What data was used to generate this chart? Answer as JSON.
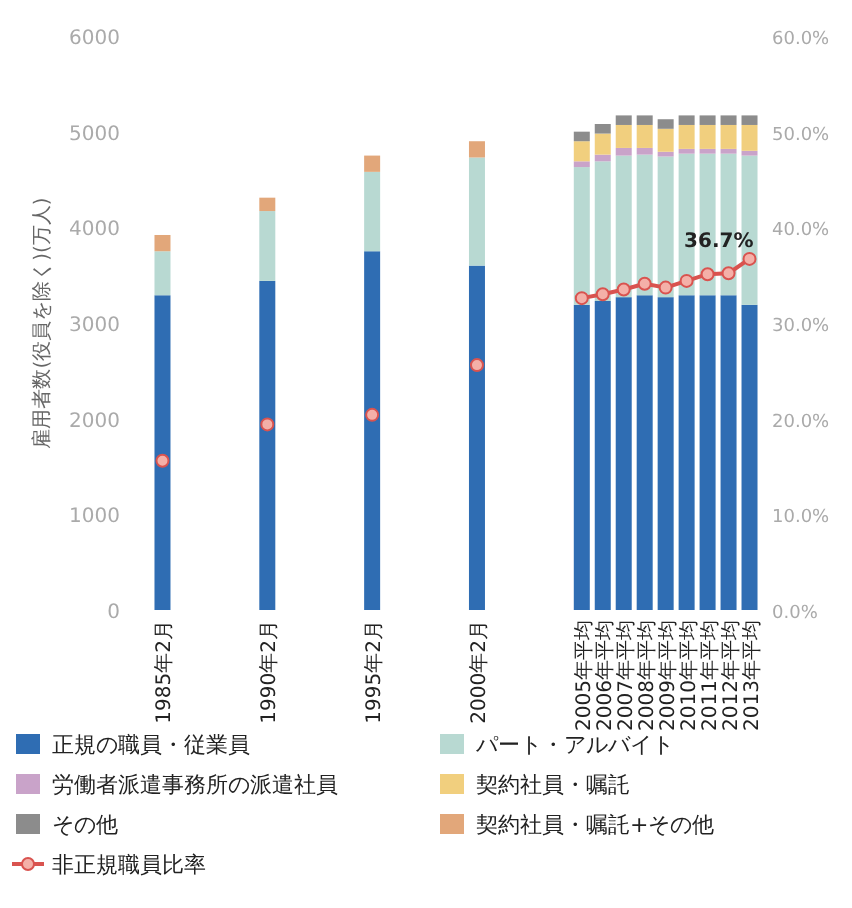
{
  "chart_data": {
    "type": "bar",
    "stacked": true,
    "legend": "bottom",
    "ylabel": "雇用者数(役員を除く)(万人)",
    "categories": [
      "1985年2月",
      null,
      null,
      null,
      null,
      "1990年2月",
      null,
      null,
      null,
      null,
      "1995年2月",
      null,
      null,
      null,
      null,
      "2000年2月",
      null,
      null,
      null,
      null,
      "2005年平均",
      "2006年平均",
      "2007年平均",
      "2008年平均",
      "2009年平均",
      "2010年平均",
      "2011年平均",
      "2012年平均",
      "2013年平均"
    ],
    "ylim": [
      0,
      6000
    ],
    "yticks": [
      0,
      1000,
      2000,
      3000,
      4000,
      5000,
      6000
    ],
    "y2lim": [
      0,
      60
    ],
    "y2ticks": [
      {
        "value": 0,
        "label": "0.0%"
      },
      {
        "value": 10,
        "label": "10.0%"
      },
      {
        "value": 20,
        "label": "20.0%"
      },
      {
        "value": 30,
        "label": "30.0%"
      },
      {
        "value": 40,
        "label": "40.0%"
      },
      {
        "value": 50,
        "label": "50.0%"
      },
      {
        "value": 60,
        "label": "60.0%"
      }
    ],
    "series": [
      {
        "name": "正規の職員・従業員",
        "color": "#2f6db3",
        "values": [
          3290,
          null,
          null,
          null,
          null,
          3440,
          null,
          null,
          null,
          null,
          3750,
          null,
          null,
          null,
          null,
          3600,
          null,
          null,
          null,
          null,
          3190,
          3230,
          3270,
          3290,
          3270,
          3290,
          3290,
          3290,
          3190
        ]
      },
      {
        "name": "パート・アルバイト",
        "color": "#b8d9d2",
        "values": [
          460,
          null,
          null,
          null,
          null,
          730,
          null,
          null,
          null,
          null,
          830,
          null,
          null,
          null,
          null,
          1130,
          null,
          null,
          null,
          null,
          1440,
          1460,
          1480,
          1470,
          1470,
          1480,
          1480,
          1480,
          1560
        ]
      },
      {
        "name": "労働者派遣事務所の派遣社員",
        "color": "#c9a3c9",
        "values": [
          null,
          null,
          null,
          null,
          null,
          null,
          null,
          null,
          null,
          null,
          null,
          null,
          null,
          null,
          null,
          null,
          null,
          null,
          null,
          null,
          60,
          70,
          80,
          70,
          50,
          50,
          50,
          50,
          50
        ]
      },
      {
        "name": "契約社員・嘱託",
        "color": "#f1cf7e",
        "values": [
          null,
          null,
          null,
          null,
          null,
          null,
          null,
          null,
          null,
          null,
          null,
          null,
          null,
          null,
          null,
          null,
          null,
          null,
          null,
          null,
          210,
          220,
          240,
          240,
          240,
          250,
          250,
          250,
          270
        ]
      },
      {
        "name": "その他",
        "color": "#8c8c8c",
        "values": [
          null,
          null,
          null,
          null,
          null,
          null,
          null,
          null,
          null,
          null,
          null,
          null,
          null,
          null,
          null,
          null,
          null,
          null,
          null,
          null,
          100,
          100,
          100,
          100,
          100,
          100,
          100,
          100,
          100
        ]
      },
      {
        "name": "契約社員・嘱託+その他",
        "color": "#e2a77a",
        "values": [
          170,
          null,
          null,
          null,
          null,
          140,
          null,
          null,
          null,
          null,
          170,
          null,
          null,
          null,
          null,
          170,
          null,
          null,
          null,
          null,
          null,
          null,
          null,
          null,
          null,
          null,
          null,
          null,
          null
        ]
      },
      {
        "name": "非正規職員比率",
        "type": "line",
        "axis": "y2",
        "marker": "circle",
        "color": "#d9534f",
        "values": [
          15.6,
          null,
          null,
          null,
          null,
          19.4,
          null,
          null,
          null,
          null,
          20.4,
          null,
          null,
          null,
          null,
          25.6,
          null,
          null,
          null,
          null,
          32.6,
          33.0,
          33.5,
          34.1,
          33.7,
          34.4,
          35.1,
          35.2,
          36.7
        ]
      }
    ],
    "annotations": [
      "36.7%"
    ]
  }
}
